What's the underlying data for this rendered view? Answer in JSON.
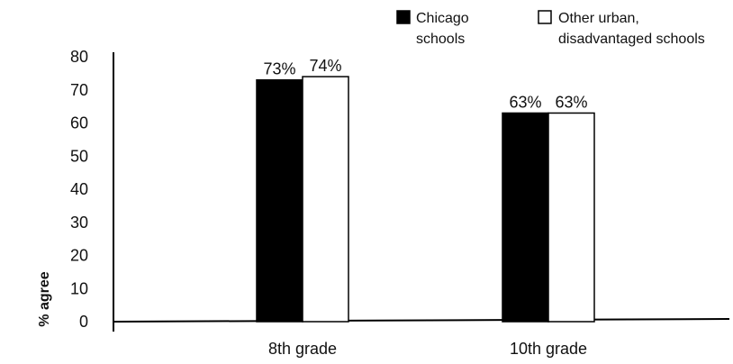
{
  "chart_data": {
    "type": "bar",
    "categories": [
      "8th grade",
      "10th grade"
    ],
    "series": [
      {
        "name": "Chicago schools",
        "name_lines": [
          "Chicago",
          "schools"
        ],
        "color": "#000000",
        "values": [
          73,
          63
        ],
        "labels": [
          "73%",
          "63%"
        ]
      },
      {
        "name": "Other urban, disadvantaged schools",
        "name_lines": [
          "Other urban,",
          "disadvantaged schools"
        ],
        "color": "#ffffff",
        "values": [
          74,
          63
        ],
        "labels": [
          "74%",
          "63%"
        ]
      }
    ],
    "ylabel": "% agree",
    "xlabel": "",
    "ylim": [
      0,
      80
    ],
    "yticks": [
      "0",
      "10",
      "20",
      "30",
      "40",
      "50",
      "60",
      "70",
      "80"
    ],
    "grid": false,
    "legend_position": "top-right"
  }
}
